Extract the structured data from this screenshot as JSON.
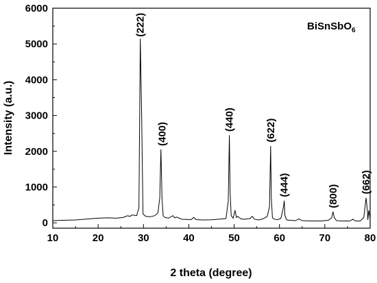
{
  "chart_data": {
    "type": "line",
    "title": "",
    "xlabel": "2 theta (degree)",
    "ylabel": "Intensity (a.u.)",
    "xlim": [
      10,
      80
    ],
    "ylim": [
      -150,
      6000
    ],
    "x_ticks": [
      "10",
      "20",
      "30",
      "40",
      "50",
      "60",
      "70",
      "80"
    ],
    "y_ticks": [
      "0",
      "1000",
      "2000",
      "3000",
      "4000",
      "5000",
      "6000"
    ],
    "legend_annotation": {
      "main": "BiSnSbO",
      "subscript": "6"
    },
    "grid": false,
    "series": [
      {
        "x": [
          10,
          12,
          15,
          18,
          20,
          22,
          24,
          25.5,
          26.5,
          27,
          27.5,
          28.5,
          29.0,
          29.3,
          29.6,
          29.9,
          30.5,
          31.5,
          32.5,
          33.2,
          33.6,
          33.85,
          34.1,
          34.35,
          34.7,
          35.5,
          36.5,
          36.9,
          37.3,
          38.5,
          40.5,
          41.1,
          41.6,
          43,
          45,
          46.5,
          48.2,
          48.7,
          48.95,
          49.1,
          49.35,
          49.8,
          50.2,
          50.5,
          50.8,
          51.5,
          52.2,
          53.5,
          54.0,
          54.5,
          55.5,
          56.5,
          57.3,
          57.8,
          58.05,
          58.2,
          58.45,
          58.9,
          59.6,
          60.3,
          60.9,
          61.05,
          61.2,
          61.6,
          62.5,
          63.5,
          64.3,
          65,
          67,
          69,
          70.8,
          71.5,
          71.8,
          72.1,
          72.6,
          74,
          75.5,
          76.2,
          76.8,
          77.8,
          78.6,
          79.1,
          79.35,
          79.5,
          79.7,
          79.9,
          80
        ],
        "values": [
          60,
          70,
          80,
          110,
          130,
          140,
          130,
          150,
          200,
          180,
          220,
          200,
          420,
          5150,
          3000,
          250,
          180,
          170,
          200,
          280,
          700,
          2050,
          650,
          200,
          150,
          130,
          200,
          140,
          160,
          100,
          90,
          150,
          90,
          80,
          85,
          100,
          120,
          600,
          2450,
          900,
          200,
          130,
          350,
          150,
          180,
          110,
          100,
          120,
          180,
          100,
          80,
          120,
          180,
          450,
          2150,
          700,
          140,
          100,
          90,
          120,
          450,
          620,
          200,
          80,
          70,
          60,
          110,
          60,
          50,
          50,
          70,
          140,
          310,
          140,
          60,
          50,
          50,
          100,
          50,
          50,
          150,
          700,
          400,
          80,
          350,
          200,
          120
        ]
      }
    ],
    "annotations": [
      {
        "text": "(222)",
        "x": 29.3,
        "y": 5200
      },
      {
        "text": "(400)",
        "x": 34.1,
        "y": 2150
      },
      {
        "text": "(440)",
        "x": 48.95,
        "y": 2550
      },
      {
        "text": "(622)",
        "x": 58.05,
        "y": 2250
      },
      {
        "text": "(444)",
        "x": 61.05,
        "y": 720
      },
      {
        "text": "(800)",
        "x": 71.8,
        "y": 410
      },
      {
        "text": "(662)",
        "x": 79.1,
        "y": 800
      }
    ]
  }
}
